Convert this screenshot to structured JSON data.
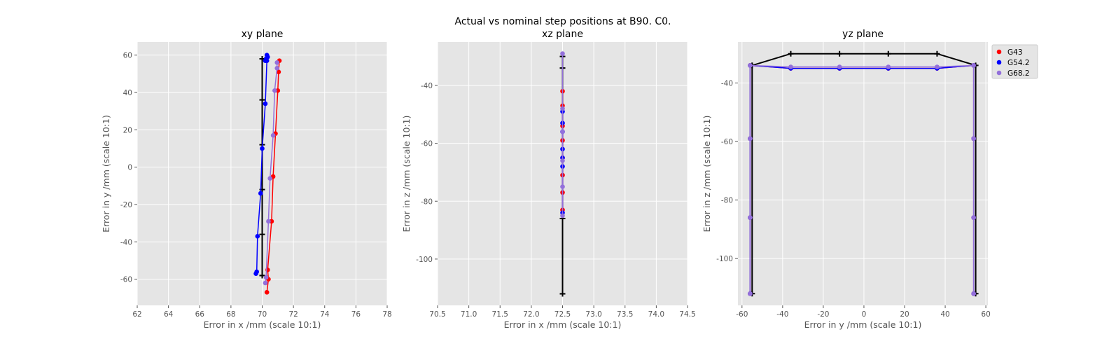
{
  "suptitle": "Actual vs nominal step positions at B90. C0.",
  "colors": {
    "G43": "#ff0000",
    "G54.2": "#0000ff",
    "G68.2": "#9370db",
    "nominal": "#000000"
  },
  "chart_data": [
    {
      "type": "scatter",
      "title": "xy plane",
      "xlabel": "Error in x /mm (scale 10:1)",
      "ylabel": "Error in y /mm (scale 10:1)",
      "xlim": [
        62,
        78
      ],
      "ylim": [
        -74,
        67
      ],
      "xticks": [
        62,
        64,
        66,
        68,
        70,
        72,
        74,
        76,
        78
      ],
      "yticks": [
        -60,
        -40,
        -20,
        0,
        20,
        40,
        60
      ],
      "grid": true,
      "series": [
        {
          "name": "nominal",
          "marker": "+",
          "color": "#000000",
          "x": [
            70,
            70,
            70,
            70,
            70,
            70,
            70,
            70
          ],
          "y": [
            58,
            36,
            12,
            -12,
            -36,
            -58,
            -58,
            58
          ]
        },
        {
          "name": "G43",
          "marker": "o",
          "color": "#ff0000",
          "x": [
            70.3,
            70.4,
            70.35,
            70.6,
            70.7,
            70.85,
            71.0,
            71.05,
            71.1
          ],
          "y": [
            -67,
            -60,
            -55,
            -29,
            -5,
            18,
            41,
            51,
            57
          ]
        },
        {
          "name": "G54.2",
          "marker": "o",
          "color": "#0000ff",
          "x": [
            69.6,
            69.65,
            69.7,
            69.9,
            70.0,
            70.2,
            70.3,
            70.35,
            70.3,
            70.25,
            70.2
          ],
          "y": [
            -57,
            -56,
            -37,
            -14,
            10,
            34,
            57,
            59,
            60,
            58,
            57
          ]
        },
        {
          "name": "G68.2",
          "marker": "o",
          "color": "#9370db",
          "x": [
            70.2,
            70.25,
            70.4,
            70.5,
            70.7,
            70.8,
            70.95,
            70.95
          ],
          "y": [
            -62,
            -59,
            -29,
            -6,
            17,
            41,
            53,
            56
          ]
        }
      ]
    },
    {
      "type": "scatter",
      "title": "xz plane",
      "xlabel": "Error in x /mm (scale 10:1)",
      "ylabel": "Error in z /mm (scale 10:1)",
      "xlim": [
        70.5,
        74.5
      ],
      "ylim": [
        -116,
        -25
      ],
      "xticks": [
        70.5,
        71.0,
        71.5,
        72.0,
        72.5,
        73.0,
        73.5,
        74.0,
        74.5
      ],
      "yticks": [
        -100,
        -80,
        -60,
        -40
      ],
      "grid": true,
      "series": [
        {
          "name": "nominal",
          "marker": "+",
          "color": "#000000",
          "x": [
            72.5,
            72.5,
            72.5,
            72.5
          ],
          "y": [
            -30,
            -34,
            -86,
            -112
          ]
        },
        {
          "name": "G43",
          "marker": "o",
          "color": "#ff0000",
          "x": [
            72.5,
            72.5,
            72.5,
            72.5,
            72.5,
            72.5,
            72.5,
            72.5
          ],
          "y": [
            -42,
            -47,
            -54,
            -59,
            -65,
            -71,
            -77,
            -83
          ]
        },
        {
          "name": "G54.2",
          "marker": "o",
          "color": "#0000ff",
          "x": [
            72.5,
            72.5,
            72.5,
            72.5,
            72.5,
            72.5,
            72.5
          ],
          "y": [
            -49,
            -53,
            -56,
            -62,
            -65,
            -68,
            -84
          ]
        },
        {
          "name": "G68.2",
          "marker": "o",
          "color": "#9370db",
          "x": [
            72.5,
            72.5,
            72.5,
            72.5,
            72.5,
            72.5
          ],
          "y": [
            -29,
            -48,
            -56,
            -66,
            -75,
            -85
          ]
        }
      ]
    },
    {
      "type": "scatter",
      "title": "yz plane",
      "xlabel": "Error in y /mm (scale 10:1)",
      "ylabel": "Error in z /mm (scale 10:1)",
      "xlim": [
        -62,
        61
      ],
      "ylim": [
        -116,
        -26
      ],
      "xticks": [
        -60,
        -40,
        -20,
        0,
        20,
        40,
        60
      ],
      "yticks": [
        -100,
        -80,
        -60,
        -40
      ],
      "grid": true,
      "legend": {
        "placement": "outside-right-top",
        "entries": [
          "G43",
          "G54.2",
          "G68.2"
        ]
      },
      "series": [
        {
          "name": "nominal",
          "marker": "+",
          "color": "#000000",
          "x": [
            -55,
            -36,
            -12,
            12,
            36,
            55,
            55
          ],
          "y": [
            -34,
            -30,
            -30,
            -30,
            -30,
            -34,
            -112
          ]
        },
        {
          "name": "nominal-left",
          "marker": "+",
          "color": "#000000",
          "x": [
            -55,
            -55
          ],
          "y": [
            -34,
            -112
          ]
        },
        {
          "name": "G43",
          "marker": "o",
          "color": "#ff0000",
          "x": [
            -56,
            -56,
            -56,
            -56,
            -36,
            -12,
            12,
            36,
            54,
            54,
            54,
            54
          ],
          "y": [
            -112,
            -86,
            -59,
            -34,
            -35,
            -35,
            -35,
            -35,
            -34,
            -59,
            -86,
            -112
          ]
        },
        {
          "name": "G54.2",
          "marker": "o",
          "color": "#0000ff",
          "x": [
            -56,
            -56,
            -56,
            -56,
            -36,
            -12,
            12,
            36,
            54,
            54,
            54,
            54
          ],
          "y": [
            -112,
            -86,
            -59,
            -34,
            -35,
            -35,
            -35,
            -35,
            -34,
            -59,
            -86,
            -112
          ]
        },
        {
          "name": "G68.2",
          "marker": "o",
          "color": "#9370db",
          "x": [
            -56,
            -56,
            -56,
            -56,
            -36,
            -12,
            12,
            36,
            54,
            54,
            54,
            54
          ],
          "y": [
            -112,
            -86,
            -59,
            -34,
            -34.5,
            -34.5,
            -34.5,
            -34.5,
            -34,
            -59,
            -86,
            -112
          ]
        }
      ]
    }
  ]
}
